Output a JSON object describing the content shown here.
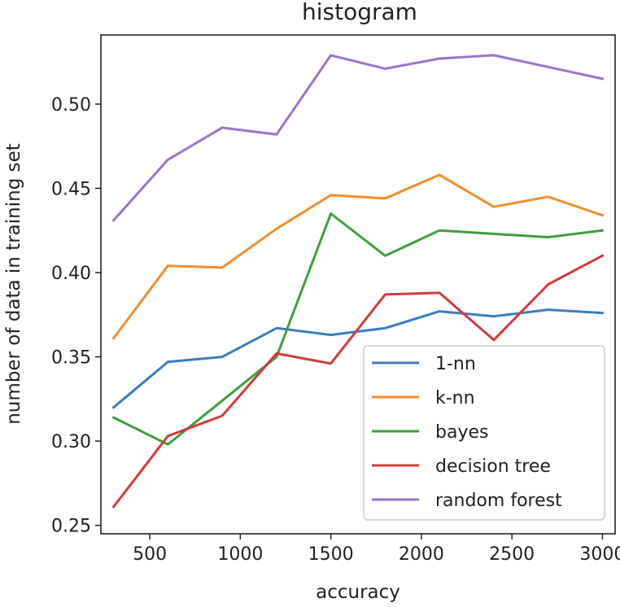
{
  "chart_data": {
    "type": "line",
    "title": "histogram",
    "xlabel": "accuracy",
    "ylabel": "number of data in training set",
    "xlim": [
      230,
      3070
    ],
    "ylim": [
      0.245,
      0.541
    ],
    "x_ticks": [
      {
        "value": 500,
        "label": "500"
      },
      {
        "value": 1000,
        "label": "1000"
      },
      {
        "value": 1500,
        "label": "1500"
      },
      {
        "value": 2000,
        "label": "2000"
      },
      {
        "value": 2500,
        "label": "2500"
      },
      {
        "value": 3000,
        "label": "3000"
      }
    ],
    "y_ticks": [
      {
        "value": 0.25,
        "label": "0.25"
      },
      {
        "value": 0.3,
        "label": "0.30"
      },
      {
        "value": 0.35,
        "label": "0.35"
      },
      {
        "value": 0.4,
        "label": "0.40"
      },
      {
        "value": 0.45,
        "label": "0.45"
      },
      {
        "value": 0.5,
        "label": "0.50"
      }
    ],
    "grid": false,
    "legend_position": "bottom-right",
    "x": [
      300,
      600,
      900,
      1200,
      1500,
      1800,
      2100,
      2400,
      2700,
      3000
    ],
    "series": [
      {
        "name": "1-nn",
        "color": "#3a7dbf",
        "values": [
          0.32,
          0.347,
          0.35,
          0.367,
          0.363,
          0.367,
          0.377,
          0.374,
          0.378,
          0.376
        ]
      },
      {
        "name": "k-nn",
        "color": "#f28e2b",
        "values": [
          0.361,
          0.404,
          0.403,
          0.426,
          0.446,
          0.444,
          0.458,
          0.439,
          0.445,
          0.434
        ]
      },
      {
        "name": "bayes",
        "color": "#3ca03c",
        "values": [
          0.314,
          0.298,
          0.324,
          0.35,
          0.435,
          0.41,
          0.425,
          0.423,
          0.421,
          0.425
        ]
      },
      {
        "name": "decision tree",
        "color": "#d13b3b",
        "values": [
          0.261,
          0.303,
          0.315,
          0.352,
          0.346,
          0.387,
          0.388,
          0.36,
          0.393,
          0.41
        ]
      },
      {
        "name": "random forest",
        "color": "#9b74c9",
        "values": [
          0.431,
          0.467,
          0.486,
          0.482,
          0.529,
          0.521,
          0.527,
          0.529,
          0.522,
          0.515
        ]
      }
    ]
  }
}
